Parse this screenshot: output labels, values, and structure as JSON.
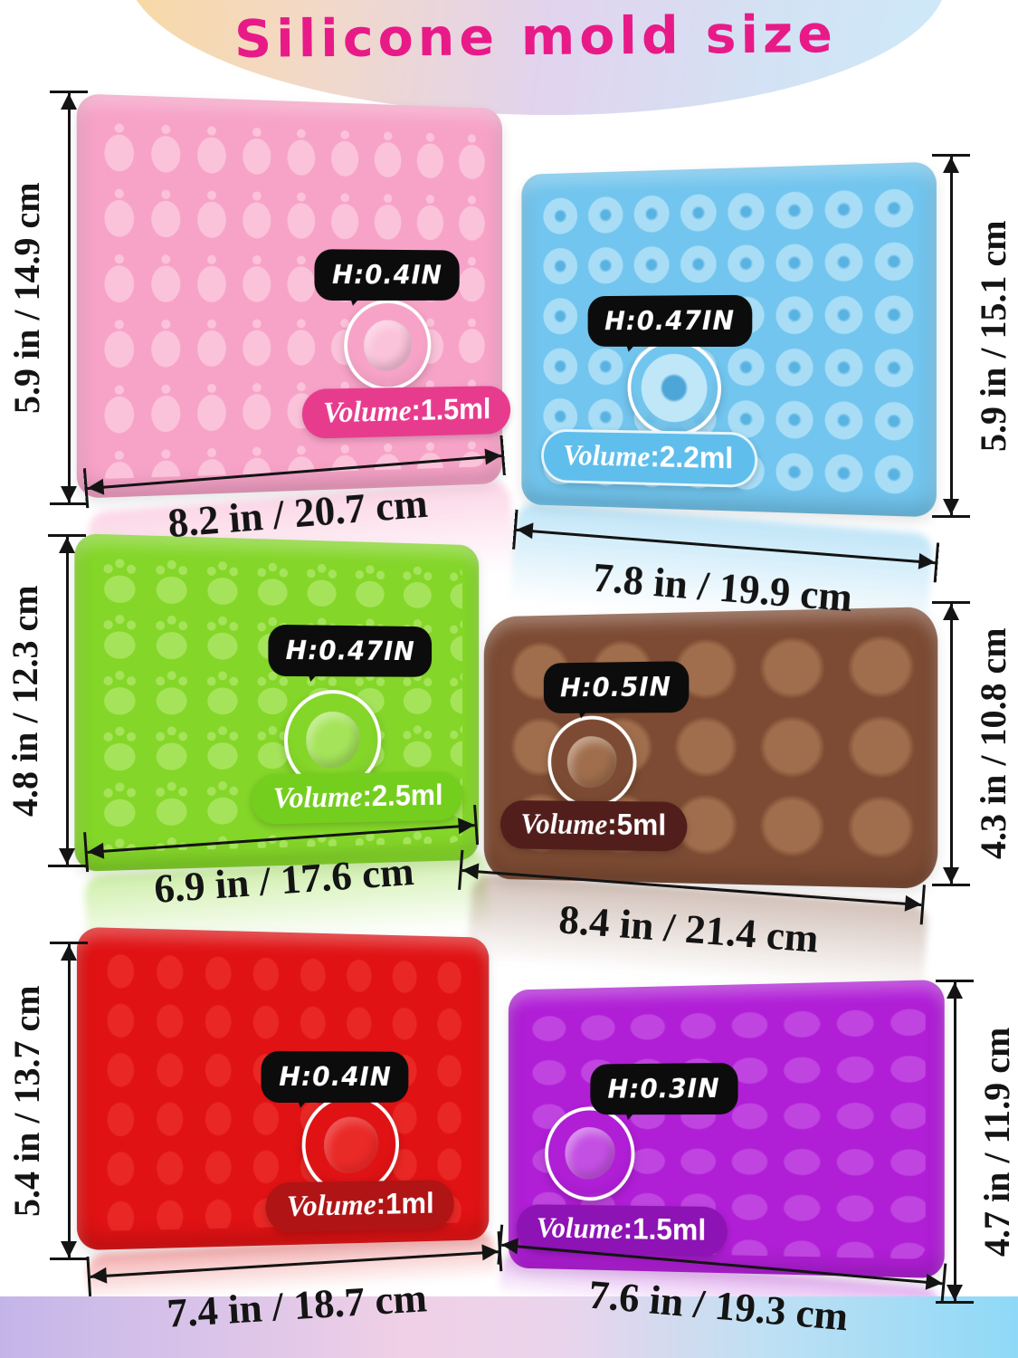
{
  "title": "Silicone mold size",
  "palette": {
    "title_color": "#e81a88",
    "banner_gradient": [
      "#f8d9a2",
      "#e2d3ee",
      "#cdeaf9"
    ],
    "footer_gradient": [
      "#c4b5e9",
      "#f0d0e6",
      "#8ed9f7"
    ],
    "dimension_color": "#141414",
    "bubble_bg": "#0c0c0c"
  },
  "molds": [
    {
      "id": "pink",
      "cavity_shape": "fruits (pineapple, cherry, strawberry, watermelon, apple)",
      "base_color": "#f7a3c8",
      "cavity_color": "#fbc3da",
      "pill_color": "#e73c8e",
      "height_bubble": "H:0.4IN",
      "volume_word": "Volume",
      "volume_value": ":1.5ml",
      "width_label": "8.2 in / 20.7 cm",
      "height_label": "5.9 in / 14.9 cm"
    },
    {
      "id": "blue",
      "cavity_shape": "donuts",
      "base_color": "#72c5ee",
      "cavity_color": "#a9ddf6",
      "pill_color": "#5fbeec",
      "height_bubble": "H:0.47IN",
      "volume_word": "Volume",
      "volume_value": ":2.2ml",
      "width_label": "7.8 in / 19.9 cm",
      "height_label": "5.9 in / 15.1 cm"
    },
    {
      "id": "green",
      "cavity_shape": "paw prints and bears",
      "base_color": "#84d629",
      "cavity_color": "#a5e45a",
      "pill_color": "#74ce1d",
      "height_bubble": "H:0.47IN",
      "volume_word": "Volume",
      "volume_value": ":2.5ml",
      "width_label": "6.9 in / 17.6 cm",
      "height_label": "4.8 in / 12.3 cm"
    },
    {
      "id": "brown",
      "cavity_shape": "animals (cat, panda, frog, monkey, bear, tiger)",
      "base_color": "#7d4b33",
      "cavity_color": "#a06e4c",
      "pill_color": "#521e1c",
      "height_bubble": "H:0.5IN",
      "volume_word": "Volume",
      "volume_value": ":5ml",
      "width_label": "8.4 in / 21.4 cm",
      "height_label": "4.3 in / 10.8 cm"
    },
    {
      "id": "red",
      "cavity_shape": "gummy bears",
      "base_color": "#e01214",
      "cavity_color": "#f23a34",
      "pill_color": "#b01415",
      "height_bubble": "H:0.4IN",
      "volume_word": "Volume",
      "volume_value": ":1ml",
      "width_label": "7.4 in / 18.7 cm",
      "height_label": "5.4 in / 13.7 cm"
    },
    {
      "id": "purple",
      "cavity_shape": "dinosaurs",
      "base_color": "#b01ed6",
      "cavity_color": "#c44fe3",
      "pill_color": "#8d13b4",
      "height_bubble": "H:0.3IN",
      "volume_word": "Volume",
      "volume_value": ":1.5ml",
      "width_label": "7.6 in / 19.3 cm",
      "height_label": "4.7 in / 11.9 cm"
    }
  ]
}
